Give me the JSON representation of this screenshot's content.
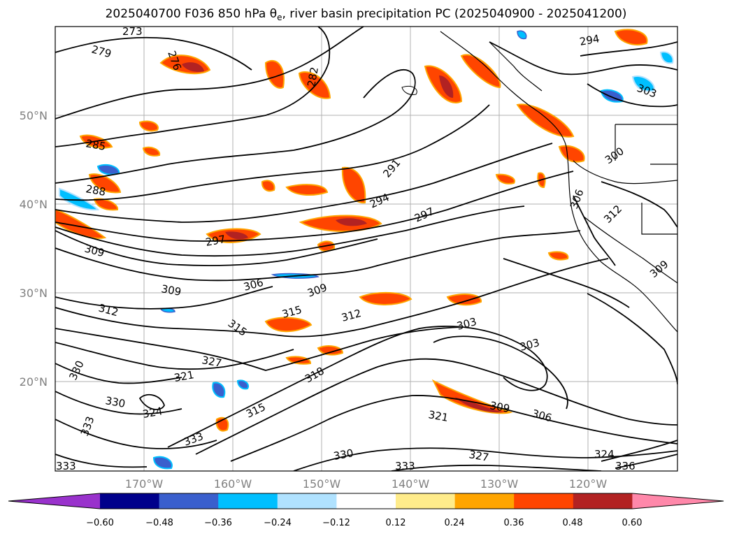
{
  "title": {
    "prefix": "2025040700 F036 850 hPa θ",
    "subscript": "e",
    "suffix": ", river basin precipitation PC (2025040900 - 2025041200)"
  },
  "map": {
    "latitude_labels": [
      "50°N",
      "40°N",
      "30°N",
      "20°N"
    ],
    "longitude_labels": [
      "170°W",
      "160°W",
      "150°W",
      "140°W",
      "130°W",
      "120°W"
    ],
    "gridlines": true,
    "projection": "equirectangular",
    "extent": {
      "lon_min": -180,
      "lon_max": -110,
      "lat_min": 10,
      "lat_max": 60
    }
  },
  "contour_labels": [
    "273",
    "276",
    "279",
    "282",
    "285",
    "288",
    "291",
    "294",
    "297",
    "300",
    "303",
    "306",
    "309",
    "312",
    "315",
    "318",
    "321",
    "324",
    "327",
    "330",
    "333",
    "336"
  ],
  "colorbar": {
    "extend": "both",
    "ticks": [
      "−0.60",
      "−0.48",
      "−0.36",
      "−0.24",
      "−0.12",
      "0.12",
      "0.24",
      "0.36",
      "0.48",
      "0.60"
    ],
    "colors": [
      "#9932cc",
      "#00008b",
      "#3a5fcd",
      "#00bfff",
      "#b0e2ff",
      "#ffffff",
      "#ffec8b",
      "#ffa500",
      "#ff4500",
      "#b22222",
      "#ff88aa"
    ]
  }
}
